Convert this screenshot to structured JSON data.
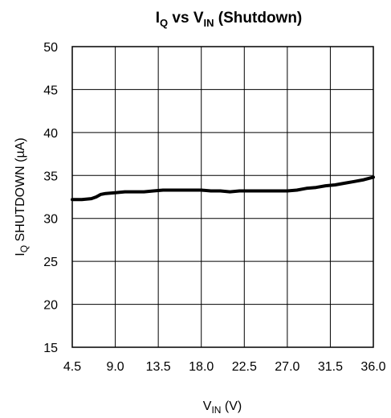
{
  "chart_data": {
    "type": "line",
    "title": {
      "main": "I",
      "main_sub": "Q",
      "mid": " vs V",
      "mid_sub": "IN",
      "tail": " (Shutdown)"
    },
    "xlabel": {
      "main": "V",
      "sub": "IN",
      "unit": " (V)"
    },
    "ylabel": {
      "main": "I",
      "sub": "Q",
      "unit": " SHUTDOWN (µA)"
    },
    "xlim": [
      4.5,
      36.0
    ],
    "ylim": [
      15,
      50
    ],
    "x_ticks": [
      "4.5",
      "9.0",
      "13.5",
      "18.0",
      "22.5",
      "27.0",
      "31.5",
      "36.0"
    ],
    "y_ticks": [
      "15",
      "20",
      "25",
      "30",
      "35",
      "40",
      "45",
      "50"
    ],
    "grid": true,
    "series": [
      {
        "color": "#000000",
        "x": [
          4.5,
          5.5,
          6.5,
          7.0,
          7.5,
          8.0,
          9.0,
          10.0,
          11.0,
          12.0,
          13.0,
          14.0,
          15.0,
          16.0,
          17.0,
          18.0,
          19.0,
          20.0,
          21.0,
          22.0,
          23.0,
          24.0,
          25.0,
          26.0,
          27.0,
          28.0,
          29.0,
          30.0,
          31.0,
          32.0,
          33.0,
          34.0,
          35.0,
          36.0
        ],
        "y": [
          32.2,
          32.2,
          32.3,
          32.5,
          32.8,
          32.9,
          33.0,
          33.1,
          33.1,
          33.1,
          33.2,
          33.3,
          33.3,
          33.3,
          33.3,
          33.3,
          33.2,
          33.2,
          33.1,
          33.2,
          33.2,
          33.2,
          33.2,
          33.2,
          33.2,
          33.3,
          33.5,
          33.6,
          33.8,
          33.9,
          34.1,
          34.3,
          34.5,
          34.8
        ]
      }
    ]
  }
}
